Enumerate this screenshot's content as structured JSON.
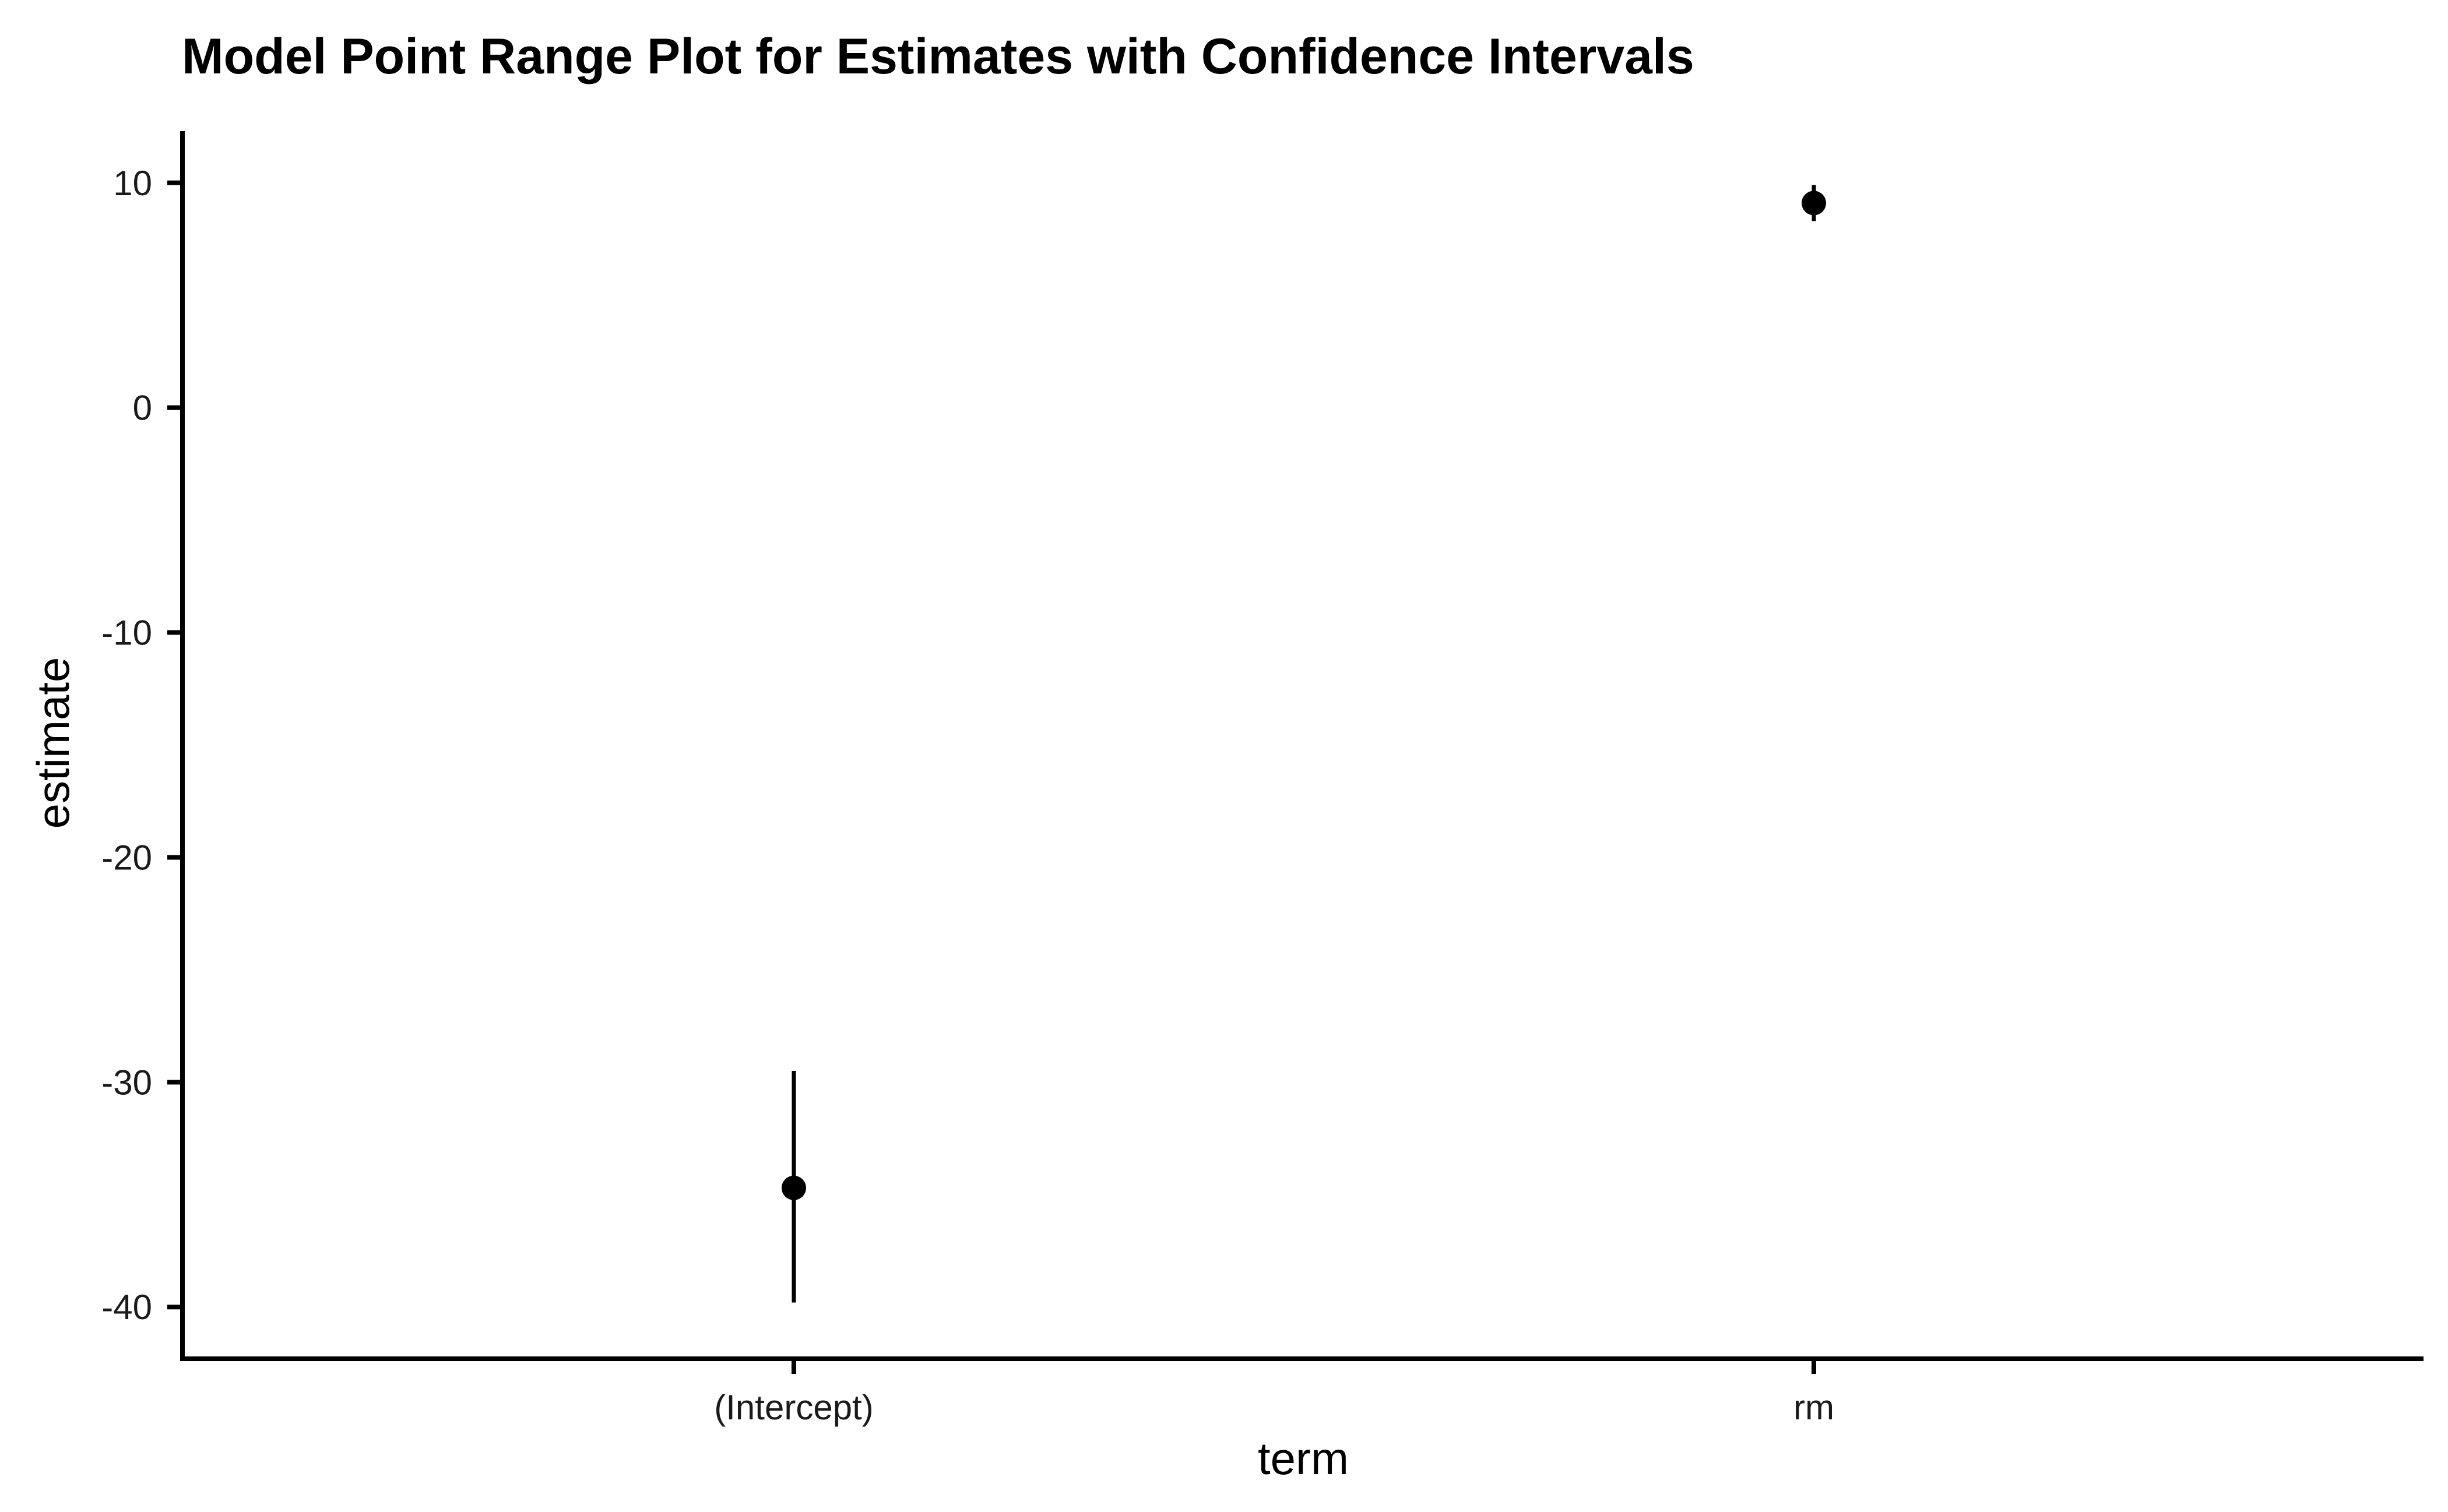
{
  "chart_data": {
    "type": "pointrange",
    "title": "Model Point Range Plot for Estimates with Confidence Intervals",
    "xlabel": "term",
    "ylabel": "estimate",
    "categories": [
      "(Intercept)",
      "rm"
    ],
    "estimates": [
      -34.7,
      9.1
    ],
    "conf_low": [
      -39.8,
      8.3
    ],
    "conf_high": [
      -29.5,
      9.9
    ],
    "yticks": [
      10,
      0,
      -10,
      -20,
      -30,
      -40
    ],
    "ytick_labels": [
      "10",
      "0",
      "-10",
      "-20",
      "-30",
      "-40"
    ],
    "ylim": [
      -42.3,
      12.3
    ],
    "grid": false,
    "legend": "none",
    "color": "#000000"
  }
}
